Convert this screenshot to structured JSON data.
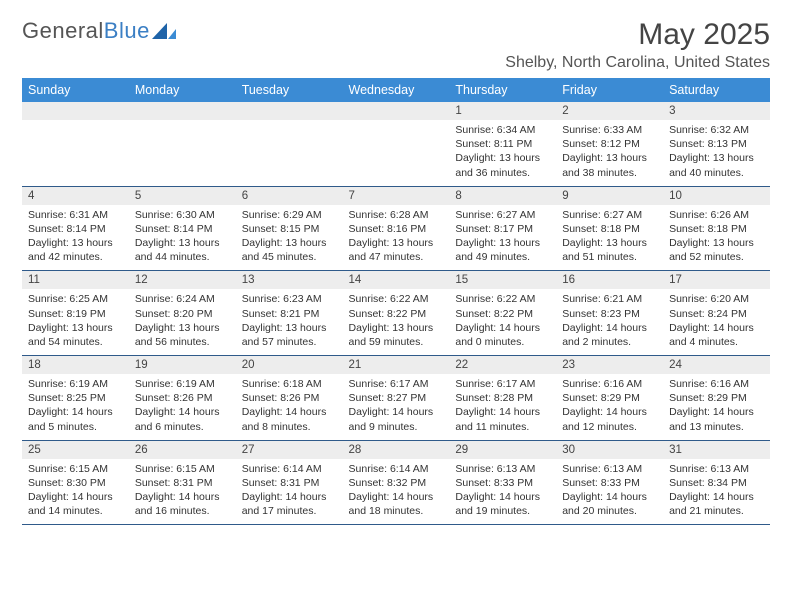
{
  "logo": {
    "word1": "General",
    "word2": "Blue"
  },
  "title": "May 2025",
  "location": "Shelby, North Carolina, United States",
  "colors": {
    "header_bg": "#3b8bd4",
    "row_divider": "#2f5a8a",
    "daynum_bg": "#ededed",
    "logo_blue": "#3b7fc4"
  },
  "weekdays": [
    "Sunday",
    "Monday",
    "Tuesday",
    "Wednesday",
    "Thursday",
    "Friday",
    "Saturday"
  ],
  "weeks": [
    [
      null,
      null,
      null,
      null,
      {
        "n": "1",
        "sr": "Sunrise: 6:34 AM",
        "ss": "Sunset: 8:11 PM",
        "dl": "Daylight: 13 hours and 36 minutes."
      },
      {
        "n": "2",
        "sr": "Sunrise: 6:33 AM",
        "ss": "Sunset: 8:12 PM",
        "dl": "Daylight: 13 hours and 38 minutes."
      },
      {
        "n": "3",
        "sr": "Sunrise: 6:32 AM",
        "ss": "Sunset: 8:13 PM",
        "dl": "Daylight: 13 hours and 40 minutes."
      }
    ],
    [
      {
        "n": "4",
        "sr": "Sunrise: 6:31 AM",
        "ss": "Sunset: 8:14 PM",
        "dl": "Daylight: 13 hours and 42 minutes."
      },
      {
        "n": "5",
        "sr": "Sunrise: 6:30 AM",
        "ss": "Sunset: 8:14 PM",
        "dl": "Daylight: 13 hours and 44 minutes."
      },
      {
        "n": "6",
        "sr": "Sunrise: 6:29 AM",
        "ss": "Sunset: 8:15 PM",
        "dl": "Daylight: 13 hours and 45 minutes."
      },
      {
        "n": "7",
        "sr": "Sunrise: 6:28 AM",
        "ss": "Sunset: 8:16 PM",
        "dl": "Daylight: 13 hours and 47 minutes."
      },
      {
        "n": "8",
        "sr": "Sunrise: 6:27 AM",
        "ss": "Sunset: 8:17 PM",
        "dl": "Daylight: 13 hours and 49 minutes."
      },
      {
        "n": "9",
        "sr": "Sunrise: 6:27 AM",
        "ss": "Sunset: 8:18 PM",
        "dl": "Daylight: 13 hours and 51 minutes."
      },
      {
        "n": "10",
        "sr": "Sunrise: 6:26 AM",
        "ss": "Sunset: 8:18 PM",
        "dl": "Daylight: 13 hours and 52 minutes."
      }
    ],
    [
      {
        "n": "11",
        "sr": "Sunrise: 6:25 AM",
        "ss": "Sunset: 8:19 PM",
        "dl": "Daylight: 13 hours and 54 minutes."
      },
      {
        "n": "12",
        "sr": "Sunrise: 6:24 AM",
        "ss": "Sunset: 8:20 PM",
        "dl": "Daylight: 13 hours and 56 minutes."
      },
      {
        "n": "13",
        "sr": "Sunrise: 6:23 AM",
        "ss": "Sunset: 8:21 PM",
        "dl": "Daylight: 13 hours and 57 minutes."
      },
      {
        "n": "14",
        "sr": "Sunrise: 6:22 AM",
        "ss": "Sunset: 8:22 PM",
        "dl": "Daylight: 13 hours and 59 minutes."
      },
      {
        "n": "15",
        "sr": "Sunrise: 6:22 AM",
        "ss": "Sunset: 8:22 PM",
        "dl": "Daylight: 14 hours and 0 minutes."
      },
      {
        "n": "16",
        "sr": "Sunrise: 6:21 AM",
        "ss": "Sunset: 8:23 PM",
        "dl": "Daylight: 14 hours and 2 minutes."
      },
      {
        "n": "17",
        "sr": "Sunrise: 6:20 AM",
        "ss": "Sunset: 8:24 PM",
        "dl": "Daylight: 14 hours and 4 minutes."
      }
    ],
    [
      {
        "n": "18",
        "sr": "Sunrise: 6:19 AM",
        "ss": "Sunset: 8:25 PM",
        "dl": "Daylight: 14 hours and 5 minutes."
      },
      {
        "n": "19",
        "sr": "Sunrise: 6:19 AM",
        "ss": "Sunset: 8:26 PM",
        "dl": "Daylight: 14 hours and 6 minutes."
      },
      {
        "n": "20",
        "sr": "Sunrise: 6:18 AM",
        "ss": "Sunset: 8:26 PM",
        "dl": "Daylight: 14 hours and 8 minutes."
      },
      {
        "n": "21",
        "sr": "Sunrise: 6:17 AM",
        "ss": "Sunset: 8:27 PM",
        "dl": "Daylight: 14 hours and 9 minutes."
      },
      {
        "n": "22",
        "sr": "Sunrise: 6:17 AM",
        "ss": "Sunset: 8:28 PM",
        "dl": "Daylight: 14 hours and 11 minutes."
      },
      {
        "n": "23",
        "sr": "Sunrise: 6:16 AM",
        "ss": "Sunset: 8:29 PM",
        "dl": "Daylight: 14 hours and 12 minutes."
      },
      {
        "n": "24",
        "sr": "Sunrise: 6:16 AM",
        "ss": "Sunset: 8:29 PM",
        "dl": "Daylight: 14 hours and 13 minutes."
      }
    ],
    [
      {
        "n": "25",
        "sr": "Sunrise: 6:15 AM",
        "ss": "Sunset: 8:30 PM",
        "dl": "Daylight: 14 hours and 14 minutes."
      },
      {
        "n": "26",
        "sr": "Sunrise: 6:15 AM",
        "ss": "Sunset: 8:31 PM",
        "dl": "Daylight: 14 hours and 16 minutes."
      },
      {
        "n": "27",
        "sr": "Sunrise: 6:14 AM",
        "ss": "Sunset: 8:31 PM",
        "dl": "Daylight: 14 hours and 17 minutes."
      },
      {
        "n": "28",
        "sr": "Sunrise: 6:14 AM",
        "ss": "Sunset: 8:32 PM",
        "dl": "Daylight: 14 hours and 18 minutes."
      },
      {
        "n": "29",
        "sr": "Sunrise: 6:13 AM",
        "ss": "Sunset: 8:33 PM",
        "dl": "Daylight: 14 hours and 19 minutes."
      },
      {
        "n": "30",
        "sr": "Sunrise: 6:13 AM",
        "ss": "Sunset: 8:33 PM",
        "dl": "Daylight: 14 hours and 20 minutes."
      },
      {
        "n": "31",
        "sr": "Sunrise: 6:13 AM",
        "ss": "Sunset: 8:34 PM",
        "dl": "Daylight: 14 hours and 21 minutes."
      }
    ]
  ]
}
